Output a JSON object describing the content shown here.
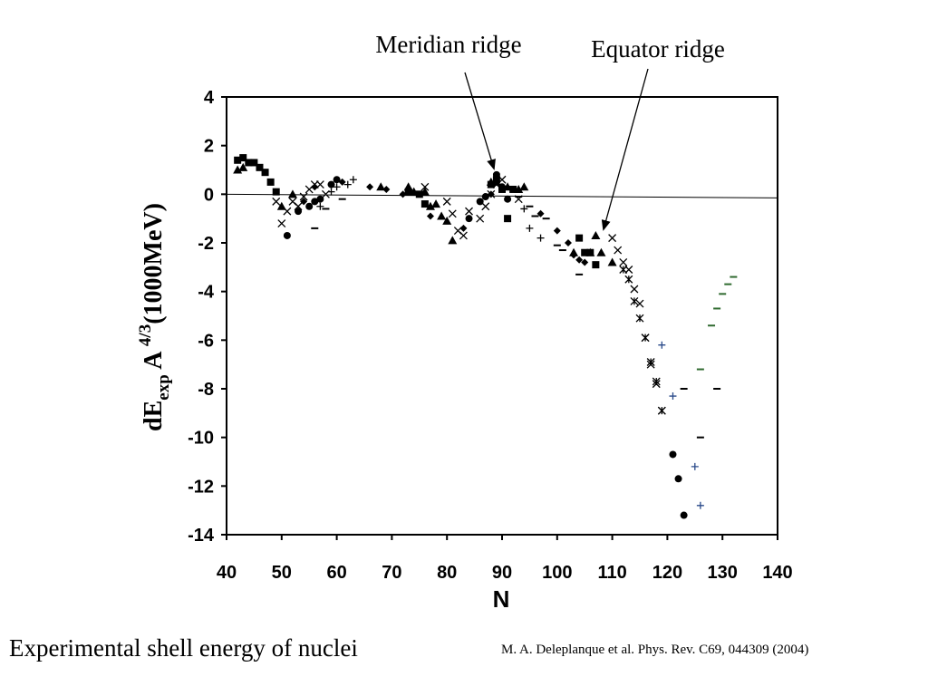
{
  "annotations": {
    "meridian": "Meridian ridge",
    "equator": "Equator ridge"
  },
  "caption": "Experimental shell energy of nuclei",
  "reference": "M. A. Deleplanque et al. Phys. Rev. C69, 044309 (2004)",
  "colors": {
    "markers": "#000000",
    "plus_series": "#2a4a8a",
    "dash_series": "#2f6a2f"
  },
  "chart_data": {
    "type": "scatter",
    "title": "",
    "xlabel": "N",
    "ylabel": {
      "base": "dE",
      "sub": "exp",
      "mid": " A ",
      "sup": "4/3",
      "tail": "(1000MeV)"
    },
    "xlim": [
      40,
      140
    ],
    "ylim": [
      -14,
      4
    ],
    "xticks": [
      "40",
      "50",
      "60",
      "70",
      "80",
      "90",
      "100",
      "110",
      "120",
      "130",
      "140"
    ],
    "yticks": [
      "4",
      "2",
      "0",
      "-2",
      "-4",
      "-6",
      "-8",
      "-10",
      "-12",
      "-14"
    ],
    "grid": false,
    "legend": "none",
    "reference_line": {
      "x": [
        40,
        140
      ],
      "y": [
        0,
        -0.15
      ]
    },
    "series": [
      {
        "marker": "square",
        "color": "#000000",
        "x": [
          42,
          43,
          44,
          45,
          46,
          47,
          48,
          49,
          73,
          75,
          76,
          88,
          89,
          90,
          91,
          92,
          104,
          105,
          106,
          107
        ],
        "y": [
          1.4,
          1.5,
          1.3,
          1.3,
          1.1,
          0.9,
          0.5,
          0.1,
          0.1,
          0.0,
          -0.4,
          0.4,
          0.6,
          0.2,
          -1.0,
          0.2,
          -1.8,
          -2.4,
          -2.4,
          -2.9
        ]
      },
      {
        "marker": "triangle",
        "color": "#000000",
        "x": [
          42,
          43,
          50,
          52,
          68,
          73,
          74,
          76,
          77,
          78,
          79,
          80,
          81,
          88,
          89,
          91,
          93,
          94,
          103,
          106,
          107,
          108,
          110
        ],
        "y": [
          1.0,
          1.1,
          -0.5,
          0.0,
          0.3,
          0.3,
          0.1,
          0.1,
          -0.5,
          -0.4,
          -0.9,
          -1.1,
          -1.9,
          0.5,
          0.5,
          0.3,
          0.2,
          0.3,
          -2.4,
          -2.4,
          -1.7,
          -2.4,
          -2.8
        ]
      },
      {
        "marker": "circle",
        "color": "#000000",
        "x": [
          51,
          53,
          55,
          56,
          57,
          59,
          60,
          84,
          86,
          87,
          89,
          90,
          91,
          121,
          122,
          123
        ],
        "y": [
          -1.7,
          -0.7,
          -0.5,
          -0.3,
          -0.2,
          0.4,
          0.6,
          -1.0,
          -0.3,
          -0.1,
          0.8,
          0.3,
          -0.2,
          -10.7,
          -11.7,
          -13.2
        ]
      },
      {
        "marker": "diamond",
        "color": "#000000",
        "x": [
          54,
          56,
          61,
          66,
          69,
          72,
          77,
          83,
          88,
          97,
          100,
          102,
          103,
          104,
          105
        ],
        "y": [
          -0.3,
          0.3,
          0.5,
          0.3,
          0.2,
          0.0,
          -0.9,
          -1.4,
          0.0,
          -0.8,
          -1.5,
          -2.0,
          -2.5,
          -2.7,
          -2.8
        ]
      },
      {
        "marker": "x",
        "color": "#000000",
        "x": [
          49,
          50,
          51,
          52,
          53,
          54,
          55,
          56,
          57,
          58,
          76,
          80,
          81,
          82,
          83,
          84,
          86,
          87,
          88,
          89,
          90,
          93,
          110,
          111,
          112,
          113,
          114,
          115,
          116,
          117,
          118,
          119
        ],
        "y": [
          -0.3,
          -1.2,
          -0.7,
          -0.3,
          -0.5,
          -0.1,
          0.2,
          0.4,
          0.4,
          0.0,
          0.3,
          -0.3,
          -0.8,
          -1.5,
          -1.7,
          -0.7,
          -1.0,
          -0.5,
          0.0,
          0.4,
          0.6,
          -0.2,
          -1.8,
          -2.3,
          -2.8,
          -3.1,
          -3.9,
          -4.5,
          -5.9,
          -7.0,
          -7.8,
          -8.9
        ]
      },
      {
        "marker": "asterisk",
        "color": "#000000",
        "x": [
          112,
          113,
          114,
          115,
          116,
          117,
          118,
          119
        ],
        "y": [
          -3.1,
          -3.5,
          -4.4,
          -5.1,
          -5.9,
          -6.9,
          -7.7,
          -8.9
        ]
      },
      {
        "marker": "plus",
        "color": "#000000",
        "x": [
          57,
          59,
          60,
          62,
          63,
          94,
          95,
          97
        ],
        "y": [
          -0.5,
          0.1,
          0.3,
          0.4,
          0.6,
          -0.6,
          -1.4,
          -1.8
        ]
      },
      {
        "marker": "plus",
        "color": "#2a4a8a",
        "x": [
          119,
          121,
          125,
          126
        ],
        "y": [
          -6.2,
          -8.3,
          -11.2,
          -12.8
        ]
      },
      {
        "marker": "dash",
        "color": "#000000",
        "x": [
          56,
          58,
          61,
          91,
          93,
          95,
          96,
          98,
          100,
          101,
          104,
          123,
          126,
          129
        ],
        "y": [
          -1.4,
          -0.6,
          -0.2,
          0.3,
          -0.1,
          -0.5,
          -0.9,
          -1.0,
          -2.1,
          -2.3,
          -3.3,
          -8.0,
          -10.0,
          -8.0
        ]
      },
      {
        "marker": "dash",
        "color": "#2f6a2f",
        "x": [
          126,
          128,
          129,
          130,
          131,
          132
        ],
        "y": [
          -7.2,
          -5.4,
          -4.7,
          -4.1,
          -3.7,
          -3.4
        ]
      }
    ]
  }
}
